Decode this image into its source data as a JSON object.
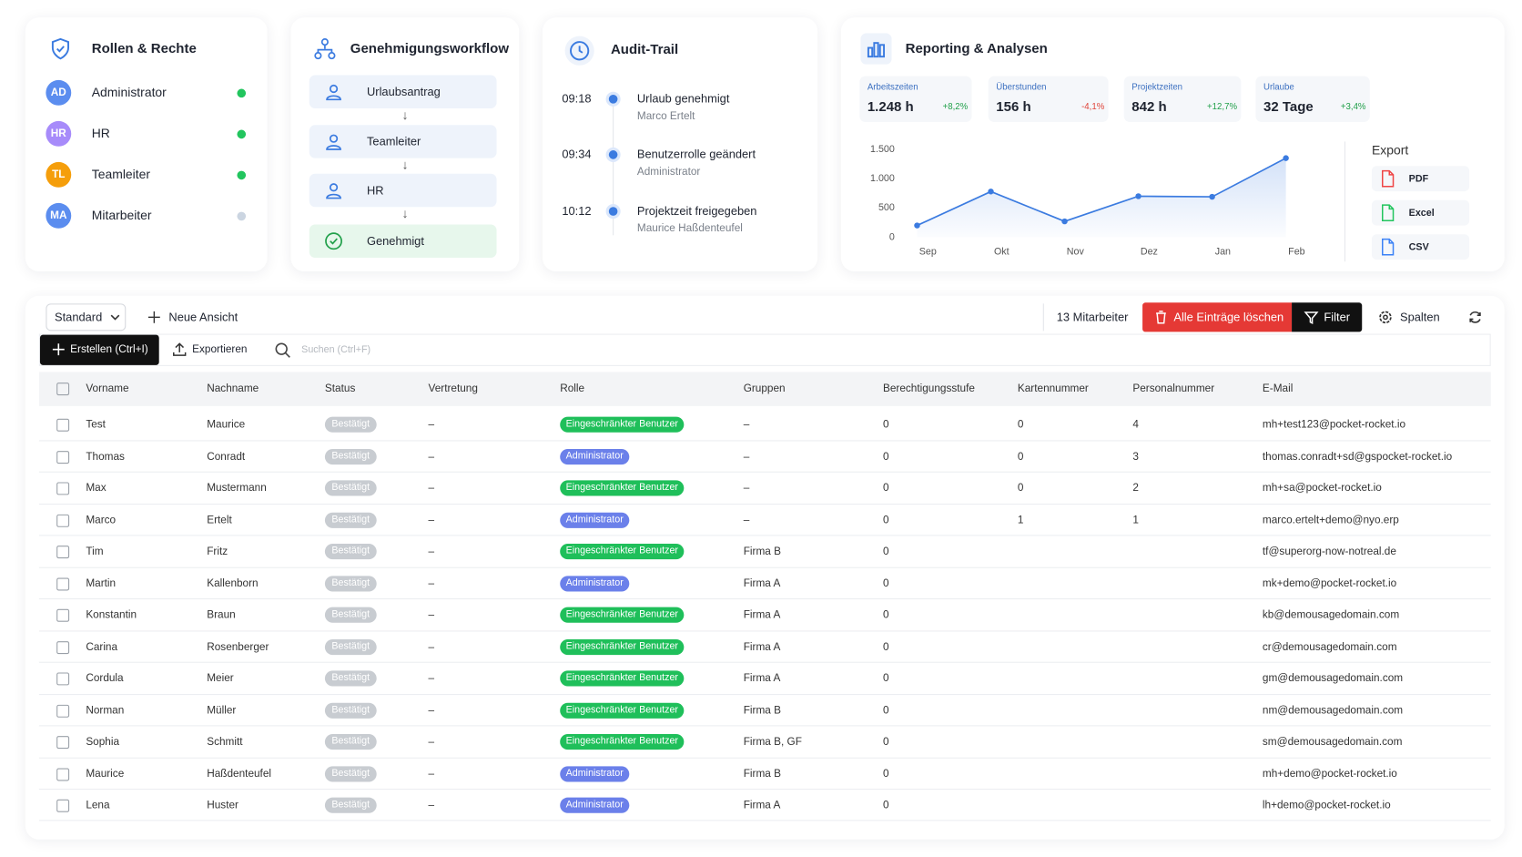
{
  "roles_card": {
    "title": "Rollen & Rechte",
    "items": [
      {
        "initials": "AD",
        "name": "Administrator",
        "avatar_color": "#5b8def",
        "status_color": "#22c55e"
      },
      {
        "initials": "HR",
        "name": "HR",
        "avatar_color": "#a78bfa",
        "status_color": "#22c55e"
      },
      {
        "initials": "TL",
        "name": "Teamleiter",
        "avatar_color": "#f59e0b",
        "status_color": "#22c55e"
      },
      {
        "initials": "MA",
        "name": "Mitarbeiter",
        "avatar_color": "#5b8def",
        "status_color": "#cbd5e1"
      }
    ]
  },
  "workflow_card": {
    "title": "Genehmigungsworkflow",
    "steps": [
      "Urlaubsantrag",
      "Teamleiter",
      "HR",
      "Genehmigt"
    ]
  },
  "audit_card": {
    "title": "Audit-Trail",
    "events": [
      {
        "time": "09:18",
        "title": "Urlaub genehmigt",
        "detail": "Marco Ertelt"
      },
      {
        "time": "09:34",
        "title": "Benutzerrolle geändert",
        "detail": "Administrator"
      },
      {
        "time": "10:12",
        "title": "Projektzeit freigegeben",
        "detail": "Maurice Haßdenteufel"
      }
    ]
  },
  "reporting_card": {
    "title": "Reporting & Analysen",
    "kpis": [
      {
        "label": "Arbeitszeiten",
        "value": "1.248 h",
        "change": "+8,2%"
      },
      {
        "label": "Überstunden",
        "value": "156 h",
        "change": "-4,1%"
      },
      {
        "label": "Projektzeiten",
        "value": "842 h",
        "change": "+12,7%"
      },
      {
        "label": "Urlaube",
        "value": "32 Tage",
        "change": "+3,4%"
      }
    ],
    "export": {
      "title": "Export",
      "items": [
        {
          "label": "PDF",
          "color": "#ef4444"
        },
        {
          "label": "Excel",
          "color": "#22c55e"
        },
        {
          "label": "CSV",
          "color": "#3b82f6"
        }
      ]
    }
  },
  "chart_data": {
    "type": "line",
    "categories": [
      "Sep",
      "Okt",
      "Nov",
      "Dez",
      "Jan",
      "Feb"
    ],
    "values": [
      200,
      780,
      270,
      700,
      690,
      1350
    ],
    "color": "#3b7be0",
    "ylim": [
      0,
      1500
    ],
    "yticks": [
      0,
      500,
      {
        "value": 1000,
        "label": "1.000"
      },
      {
        "value": 1500,
        "label": "1.500"
      }
    ],
    "grid": false
  },
  "toolbar": {
    "view": "Standard",
    "new_view": "Neue Ansicht",
    "count": "13 Mitarbeiter",
    "delete_all": "Alle Einträge löschen",
    "filter": "Filter",
    "columns": "Spalten",
    "create": "Erstellen (Ctrl+I)",
    "export": "Exportieren",
    "search": "Suchen (Ctrl+F)"
  },
  "table": {
    "headers": [
      "Vorname",
      "Nachname",
      "Status",
      "Vertretung",
      "Rolle",
      "Gruppen",
      "Berechtigungsstufe",
      "Kartennummer",
      "Personalnummer",
      "E-Mail"
    ],
    "rows": [
      [
        "Test",
        "Maurice",
        "Bestätigt",
        "–",
        {
          "label": "Eingeschränkter Benutzer",
          "color": "#1fbf5a"
        },
        "–",
        0,
        0,
        4,
        "mh+test123@pocket-rocket.io"
      ],
      [
        "Thomas",
        "Conradt",
        "Bestätigt",
        "–",
        {
          "label": "Administrator",
          "color": "#6b80ea"
        },
        "–",
        0,
        0,
        3,
        "thomas.conradt+sd@gspocket-rocket.io"
      ],
      [
        "Max",
        "Mustermann",
        "Bestätigt",
        "–",
        {
          "label": "Eingeschränkter Benutzer",
          "color": "#1fbf5a"
        },
        "–",
        0,
        0,
        2,
        "mh+sa@pocket-rocket.io"
      ],
      [
        "Marco",
        "Ertelt",
        "Bestätigt",
        "–",
        {
          "label": "Administrator",
          "color": "#6b80ea"
        },
        "–",
        0,
        1,
        1,
        "marco.ertelt+demo@nyo.erp"
      ],
      [
        "Tim",
        "Fritz",
        "Bestätigt",
        "–",
        {
          "label": "Eingeschränkter Benutzer",
          "color": "#1fbf5a"
        },
        "Firma B",
        0,
        null,
        null,
        "tf@superorg-now-notreal.de"
      ],
      [
        "Martin",
        "Kallenborn",
        "Bestätigt",
        "–",
        {
          "label": "Administrator",
          "color": "#6b80ea"
        },
        "Firma A",
        0,
        null,
        null,
        "mk+demo@pocket-rocket.io"
      ],
      [
        "Konstantin",
        "Braun",
        "Bestätigt",
        "–",
        {
          "label": "Eingeschränkter Benutzer",
          "color": "#1fbf5a"
        },
        "Firma A",
        0,
        null,
        null,
        "kb@demousagedomain.com"
      ],
      [
        "Carina",
        "Rosenberger",
        "Bestätigt",
        "–",
        {
          "label": "Eingeschränkter Benutzer",
          "color": "#1fbf5a"
        },
        "Firma A",
        0,
        null,
        null,
        "cr@demousagedomain.com"
      ],
      [
        "Cordula",
        "Meier",
        "Bestätigt",
        "–",
        {
          "label": "Eingeschränkter Benutzer",
          "color": "#1fbf5a"
        },
        "Firma A",
        0,
        null,
        null,
        "gm@demousagedomain.com"
      ],
      [
        "Norman",
        "Müller",
        "Bestätigt",
        "–",
        {
          "label": "Eingeschränkter Benutzer",
          "color": "#1fbf5a"
        },
        "Firma B",
        0,
        null,
        null,
        "nm@demousagedomain.com"
      ],
      [
        "Sophia",
        "Schmitt",
        "Bestätigt",
        "–",
        {
          "label": "Eingeschränkter Benutzer",
          "color": "#1fbf5a"
        },
        "Firma B, GF",
        0,
        null,
        null,
        "sm@demousagedomain.com"
      ],
      [
        "Maurice",
        "Haßdenteufel",
        "Bestätigt",
        "–",
        {
          "label": "Administrator",
          "color": "#6b80ea"
        },
        "Firma B",
        0,
        null,
        null,
        "mh+demo@pocket-rocket.io"
      ],
      [
        "Lena",
        "Huster",
        "Bestätigt",
        "–",
        {
          "label": "Administrator",
          "color": "#6b80ea"
        },
        "Firma A",
        0,
        null,
        null,
        "lh+demo@pocket-rocket.io"
      ]
    ]
  }
}
